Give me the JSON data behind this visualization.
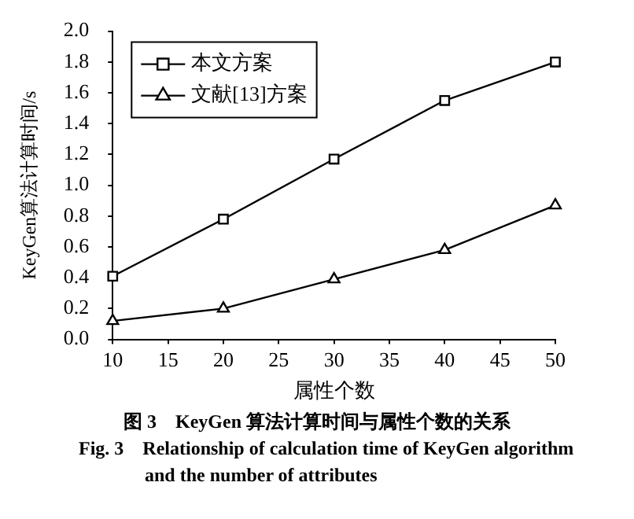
{
  "chart_data": {
    "type": "line",
    "title": "图 3　KeyGen 算法计算时间与属性个数的关系",
    "subtitle": "Fig. 3　Relationship of calculation time of KeyGen algorithm and the number of attributes",
    "xlabel": "属性个数",
    "ylabel": "KeyGen算法计算时间/s",
    "x": [
      10,
      20,
      30,
      40,
      50
    ],
    "series": [
      {
        "name": "本文方案",
        "color": "#000000",
        "marker": "square",
        "values": [
          0.41,
          0.78,
          1.17,
          1.55,
          1.8
        ]
      },
      {
        "name": "文献[13]方案",
        "color": "#000000",
        "marker": "triangle",
        "values": [
          0.12,
          0.2,
          0.39,
          0.58,
          0.87
        ]
      }
    ],
    "xlim": [
      10,
      50
    ],
    "xticks": [
      10,
      15,
      20,
      25,
      30,
      35,
      40,
      45,
      50
    ],
    "ylim": [
      0,
      2.0
    ],
    "yticks": [
      {
        "value": 0,
        "label": "0.0"
      },
      {
        "value": 0.2,
        "label": "0.2"
      },
      {
        "value": 0.4,
        "label": "0.4"
      },
      {
        "value": 0.6,
        "label": "0.6"
      },
      {
        "value": 0.8,
        "label": "0.8"
      },
      {
        "value": 1.0,
        "label": "1.0"
      },
      {
        "value": 1.2,
        "label": "1.2"
      },
      {
        "value": 1.4,
        "label": "1.4"
      },
      {
        "value": 1.6,
        "label": "1.6"
      },
      {
        "value": 1.8,
        "label": "1.8"
      },
      {
        "value": 2.0,
        "label": "2.0"
      }
    ],
    "grid": false,
    "legend": "top left",
    "line_style": "solid"
  }
}
